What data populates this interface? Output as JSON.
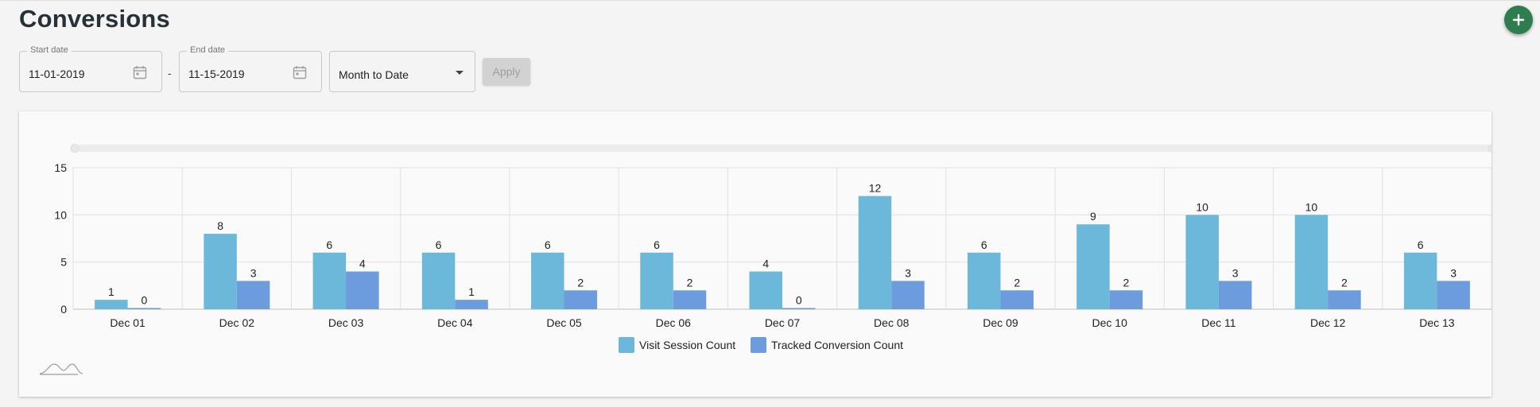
{
  "page": {
    "title": "Conversions"
  },
  "filters": {
    "start_date_label": "Start date",
    "start_date_value": "11-01-2019",
    "end_date_label": "End date",
    "end_date_value": "11-15-2019",
    "separator": "-",
    "range_value": "Month to Date",
    "apply_label": "Apply"
  },
  "icons": {
    "add": "plus-icon",
    "calendar": "calendar-icon",
    "dropdown": "chevron-down-icon",
    "thumbnail": "sparkline-icon"
  },
  "colors": {
    "fab": "#2e7d4f",
    "series_visit": "#6cb8db",
    "series_conversion": "#6c9bde"
  },
  "chart_data": {
    "type": "bar",
    "title": "",
    "xlabel": "",
    "ylabel": "",
    "categories": [
      "Dec 01",
      "Dec 02",
      "Dec 03",
      "Dec 04",
      "Dec 05",
      "Dec 06",
      "Dec 07",
      "Dec 08",
      "Dec 09",
      "Dec 10",
      "Dec 11",
      "Dec 12",
      "Dec 13"
    ],
    "series": [
      {
        "name": "Visit Session Count",
        "color": "#6cb8db",
        "values": [
          1,
          8,
          6,
          6,
          6,
          6,
          4,
          12,
          6,
          9,
          10,
          10,
          6
        ]
      },
      {
        "name": "Tracked Conversion Count",
        "color": "#6c9bde",
        "values": [
          0,
          3,
          4,
          1,
          2,
          2,
          0,
          3,
          2,
          2,
          3,
          2,
          3
        ]
      }
    ],
    "ylim": [
      0,
      15
    ],
    "yticks": [
      0,
      5,
      10,
      15
    ],
    "grid": true,
    "legend": "bottom-center",
    "data_labels": true
  }
}
